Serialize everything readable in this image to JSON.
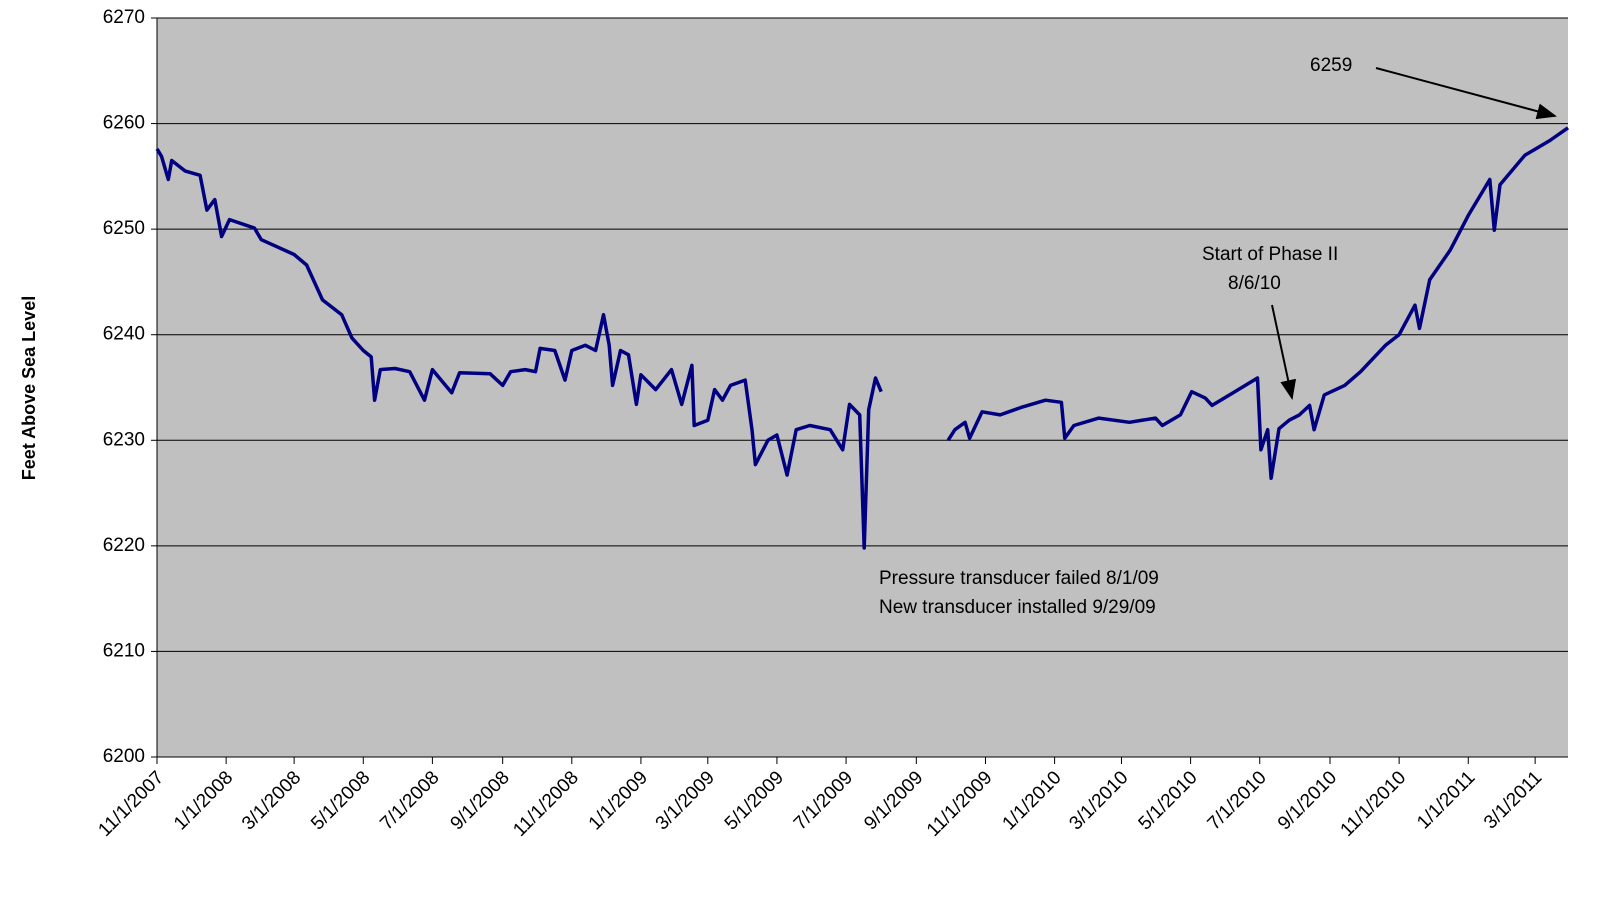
{
  "chart_data": {
    "type": "line",
    "y_label": "Feet Above Sea Level",
    "x": [
      "11/1/2007",
      "11/5/2007",
      "11/11/2007",
      "11/14/2007",
      "11/26/2007",
      "12/9/2007",
      "12/15/2007",
      "12/22/2007",
      "12/28/2007",
      "1/4/2008",
      "1/26/2008",
      "2/1/2008",
      "3/1/2008",
      "3/12/2008",
      "3/26/2008",
      "4/12/2008",
      "4/21/2008",
      "5/1/2008",
      "5/8/2008",
      "5/11/2008",
      "5/16/2008",
      "5/29/2008",
      "6/11/2008",
      "6/24/2008",
      "7/1/2008",
      "7/18/2008",
      "7/25/2008",
      "8/21/2008",
      "9/1/2008",
      "9/8/2008",
      "9/21/2008",
      "9/30/2008",
      "10/4/2008",
      "10/17/2008",
      "10/26/2008",
      "11/1/2008",
      "11/13/2008",
      "11/22/2008",
      "11/29/2008",
      "12/4/2008",
      "12/7/2008",
      "12/14/2008",
      "12/21/2008",
      "12/28/2008",
      "1/1/2009",
      "1/14/2009",
      "1/28/2009",
      "2/6/2009",
      "2/15/2009",
      "2/17/2009",
      "3/1/2009",
      "3/7/2009",
      "3/14/2009",
      "3/21/2009",
      "4/3/2009",
      "4/9/2009",
      "4/12/2009",
      "4/23/2009",
      "5/1/2009",
      "5/10/2009",
      "5/18/2009",
      "5/30/2009",
      "6/17/2009",
      "6/28/2009",
      "7/4/2009",
      "7/13/2009",
      "7/17/2009",
      "7/21/2009",
      "7/27/2009",
      "8/1/2009",
      "9/1/2009",
      "9/29/2009",
      "10/5/2009",
      "10/14/2009",
      "10/18/2009",
      "10/29/2009",
      "11/14/2009",
      "12/2/2009",
      "12/24/2009",
      "1/7/2010",
      "1/10/2010",
      "1/18/2010",
      "2/9/2010",
      "3/8/2010",
      "3/31/2010",
      "4/6/2010",
      "4/22/2010",
      "5/2/2010",
      "5/14/2010",
      "5/20/2010",
      "6/9/2010",
      "6/29/2010",
      "7/2/2010",
      "7/8/2010",
      "7/11/2010",
      "7/18/2010",
      "7/27/2010",
      "8/5/2010",
      "8/14/2010",
      "8/18/2010",
      "8/27/2010",
      "9/14/2010",
      "9/28/2010",
      "10/20/2010",
      "11/1/2010",
      "11/15/2010",
      "11/19/2010",
      "11/28/2010",
      "12/16/2010",
      "1/1/2011",
      "1/20/2011",
      "1/24/2011",
      "1/29/2011",
      "2/20/2011",
      "3/14/2011",
      "3/30/2011"
    ],
    "series": [
      {
        "color": "#000080",
        "values": [
          6257.6,
          6256.9,
          6254.7,
          6256.5,
          6255.5,
          6255.1,
          6251.8,
          6252.8,
          6249.3,
          6250.9,
          6250.1,
          6249,
          6247.6,
          6246.6,
          6243.3,
          6241.9,
          6239.7,
          6238.5,
          6237.9,
          6233.8,
          6236.7,
          6236.8,
          6236.5,
          6233.8,
          6236.7,
          6234.5,
          6236.4,
          6236.3,
          6235.2,
          6236.5,
          6236.7,
          6236.5,
          6238.7,
          6238.5,
          6235.7,
          6238.5,
          6239,
          6238.5,
          6241.9,
          6239,
          6235.2,
          6238.5,
          6238.1,
          6233.4,
          6236.2,
          6234.8,
          6236.7,
          6233.4,
          6237.1,
          6231.4,
          6231.9,
          6234.8,
          6233.8,
          6235.2,
          6235.7,
          6231,
          6227.7,
          6230,
          6230.5,
          6226.7,
          6231,
          6231.4,
          6231,
          6229.1,
          6233.4,
          6232.4,
          6219.8,
          6232.9,
          6235.9,
          6234.6,
          null,
          6230,
          6231,
          6231.7,
          6230.2,
          6232.7,
          6232.4,
          6233.1,
          6233.8,
          6233.6,
          6230.2,
          6231.4,
          6232.1,
          6231.7,
          6232.1,
          6231.4,
          6232.4,
          6234.6,
          6234,
          6233.3,
          6234.6,
          6235.9,
          6229.1,
          6231,
          6226.4,
          6231.1,
          6231.9,
          6232.4,
          6233.3,
          6231,
          6234.3,
          6235.2,
          6236.5,
          6239,
          6240,
          6242.8,
          6240.6,
          6245.2,
          6248,
          6251.3,
          6254.7,
          6249.9,
          6254.2,
          6257,
          6258.4,
          6259.6
        ]
      }
    ],
    "xlim": [
      "11/1/2007",
      "3/30/2011"
    ],
    "xticks": [
      "11/1/2007",
      "1/1/2008",
      "3/1/2008",
      "5/1/2008",
      "7/1/2008",
      "9/1/2008",
      "11/1/2008",
      "1/1/2009",
      "3/1/2009",
      "5/1/2009",
      "7/1/2009",
      "9/1/2009",
      "11/1/2009",
      "1/1/2010",
      "3/1/2010",
      "5/1/2010",
      "7/1/2010",
      "9/1/2010",
      "11/1/2010",
      "1/1/2011",
      "3/1/2011"
    ],
    "ylim": [
      6200,
      6270
    ],
    "yticks": [
      6200,
      6210,
      6220,
      6230,
      6240,
      6250,
      6260,
      6270
    ],
    "grid": true,
    "annotations": [
      "6259",
      "Start of Phase II",
      "8/6/10",
      "Pressure transducer failed 8/1/09",
      "New transducer installed 9/29/09"
    ]
  }
}
